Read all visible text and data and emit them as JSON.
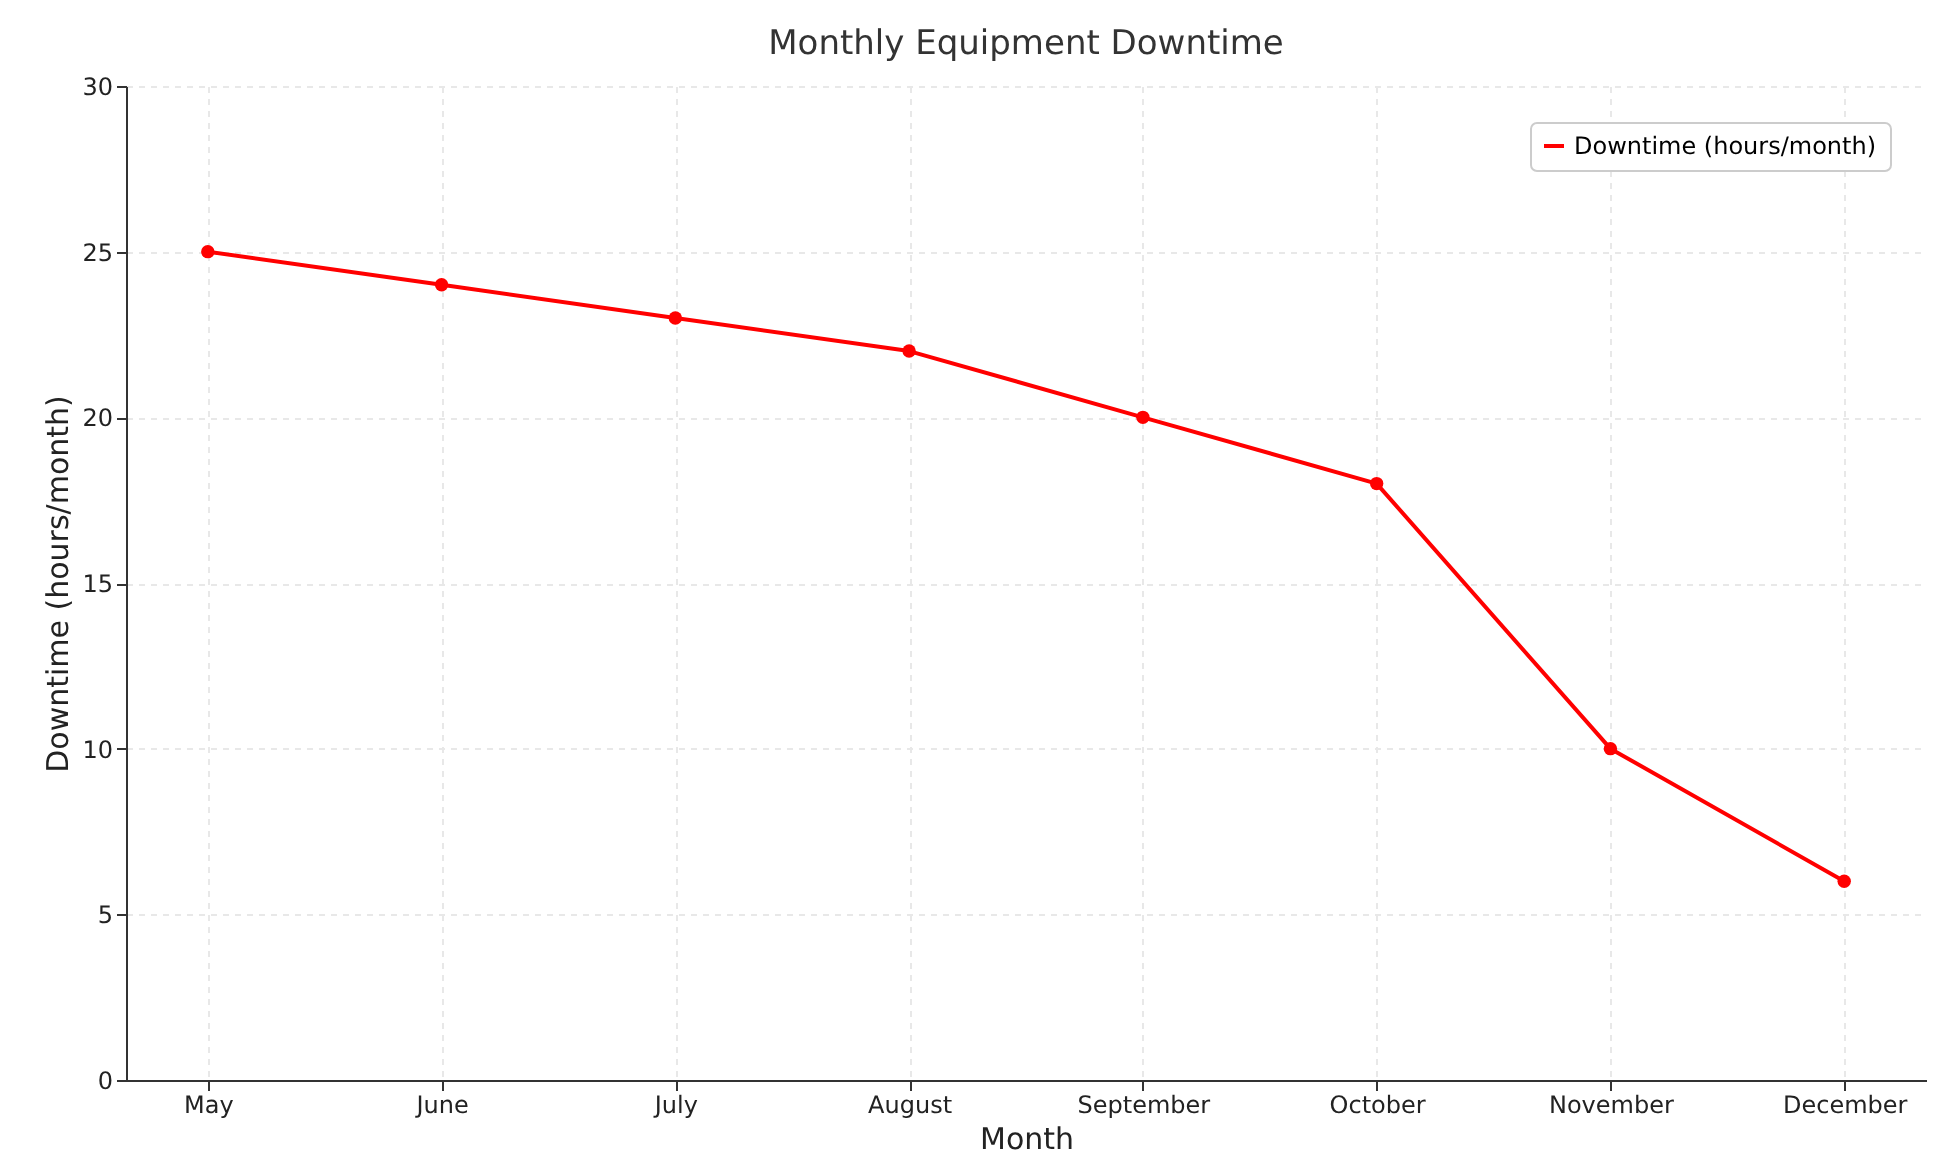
{
  "chart_data": {
    "type": "line",
    "title": "Monthly Equipment Downtime",
    "xlabel": "Month",
    "ylabel": "Downtime (hours/month)",
    "categories": [
      "May",
      "June",
      "July",
      "August",
      "September",
      "October",
      "November",
      "December"
    ],
    "series": [
      {
        "name": "Downtime (hours/month)",
        "color": "#ff0000",
        "values": [
          25,
          24,
          23,
          22,
          20,
          18,
          10,
          6
        ]
      }
    ],
    "ylim": [
      0,
      30
    ],
    "yticks": [
      0,
      5,
      10,
      15,
      20,
      25,
      30
    ],
    "grid": true,
    "legend": "top right",
    "marker": "circle",
    "line_style": "solid"
  }
}
